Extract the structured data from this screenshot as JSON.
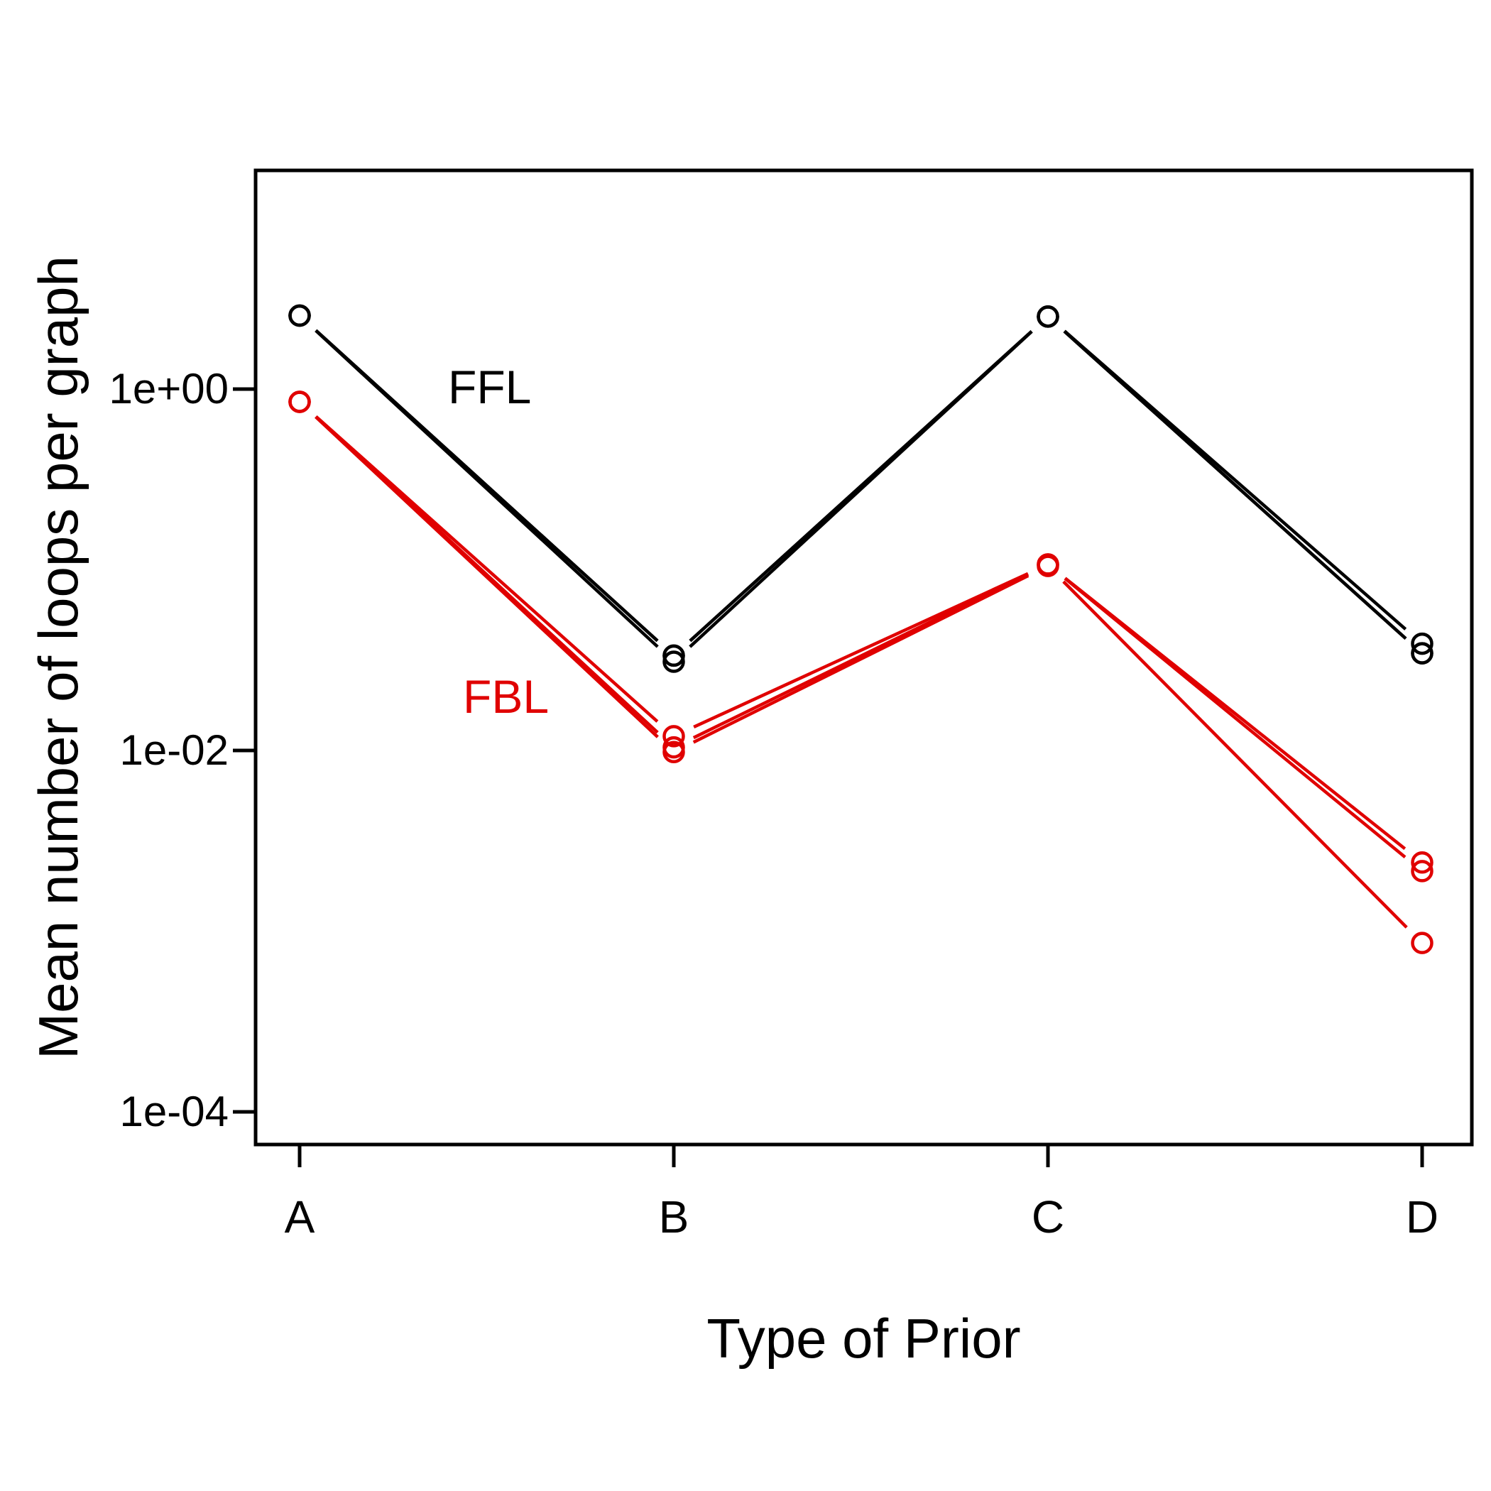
{
  "chart_data": {
    "type": "line",
    "title": "",
    "xlabel": "Type of Prior",
    "ylabel": "Mean number of loops per graph",
    "categories": [
      "A",
      "B",
      "C",
      "D"
    ],
    "y_scale": "log10",
    "y_axis": {
      "ticks": [
        {
          "label": "1e+00",
          "value": 1
        },
        {
          "label": "1e-02",
          "value": 0.01
        },
        {
          "label": "1e-04",
          "value": 0.0001
        }
      ],
      "range_approx": [
        6.6e-05,
        16
      ]
    },
    "grid": "off",
    "legend_position": "inline-annotations",
    "marker": "open-circle",
    "line_style": "points-with-gaps",
    "series": [
      {
        "name": "FFL",
        "color": "#000000",
        "values": [
          2.55,
          0.0335,
          2.52,
          0.039
        ]
      },
      {
        "name": "FFL",
        "color": "#000000",
        "values": [
          2.55,
          0.0335,
          2.52,
          0.0345
        ]
      },
      {
        "name": "FFL",
        "color": "#000000",
        "values": [
          2.55,
          0.031,
          2.52,
          0.0345
        ]
      },
      {
        "name": "FBL",
        "color": "#e00000",
        "values": [
          0.85,
          0.012,
          0.107,
          0.0024
        ]
      },
      {
        "name": "FBL",
        "color": "#e00000",
        "values": [
          0.85,
          0.0104,
          0.107,
          0.00215
        ]
      },
      {
        "name": "FBL",
        "color": "#e00000",
        "values": [
          0.85,
          0.0098,
          0.105,
          0.00086
        ]
      }
    ],
    "annotations": [
      {
        "text": "FFL",
        "color": "#000000"
      },
      {
        "text": "FBL",
        "color": "#e00000"
      }
    ]
  },
  "colors": {
    "ffl": "#000000",
    "fbl": "#e00000",
    "axis": "#000000",
    "background": "#ffffff"
  }
}
